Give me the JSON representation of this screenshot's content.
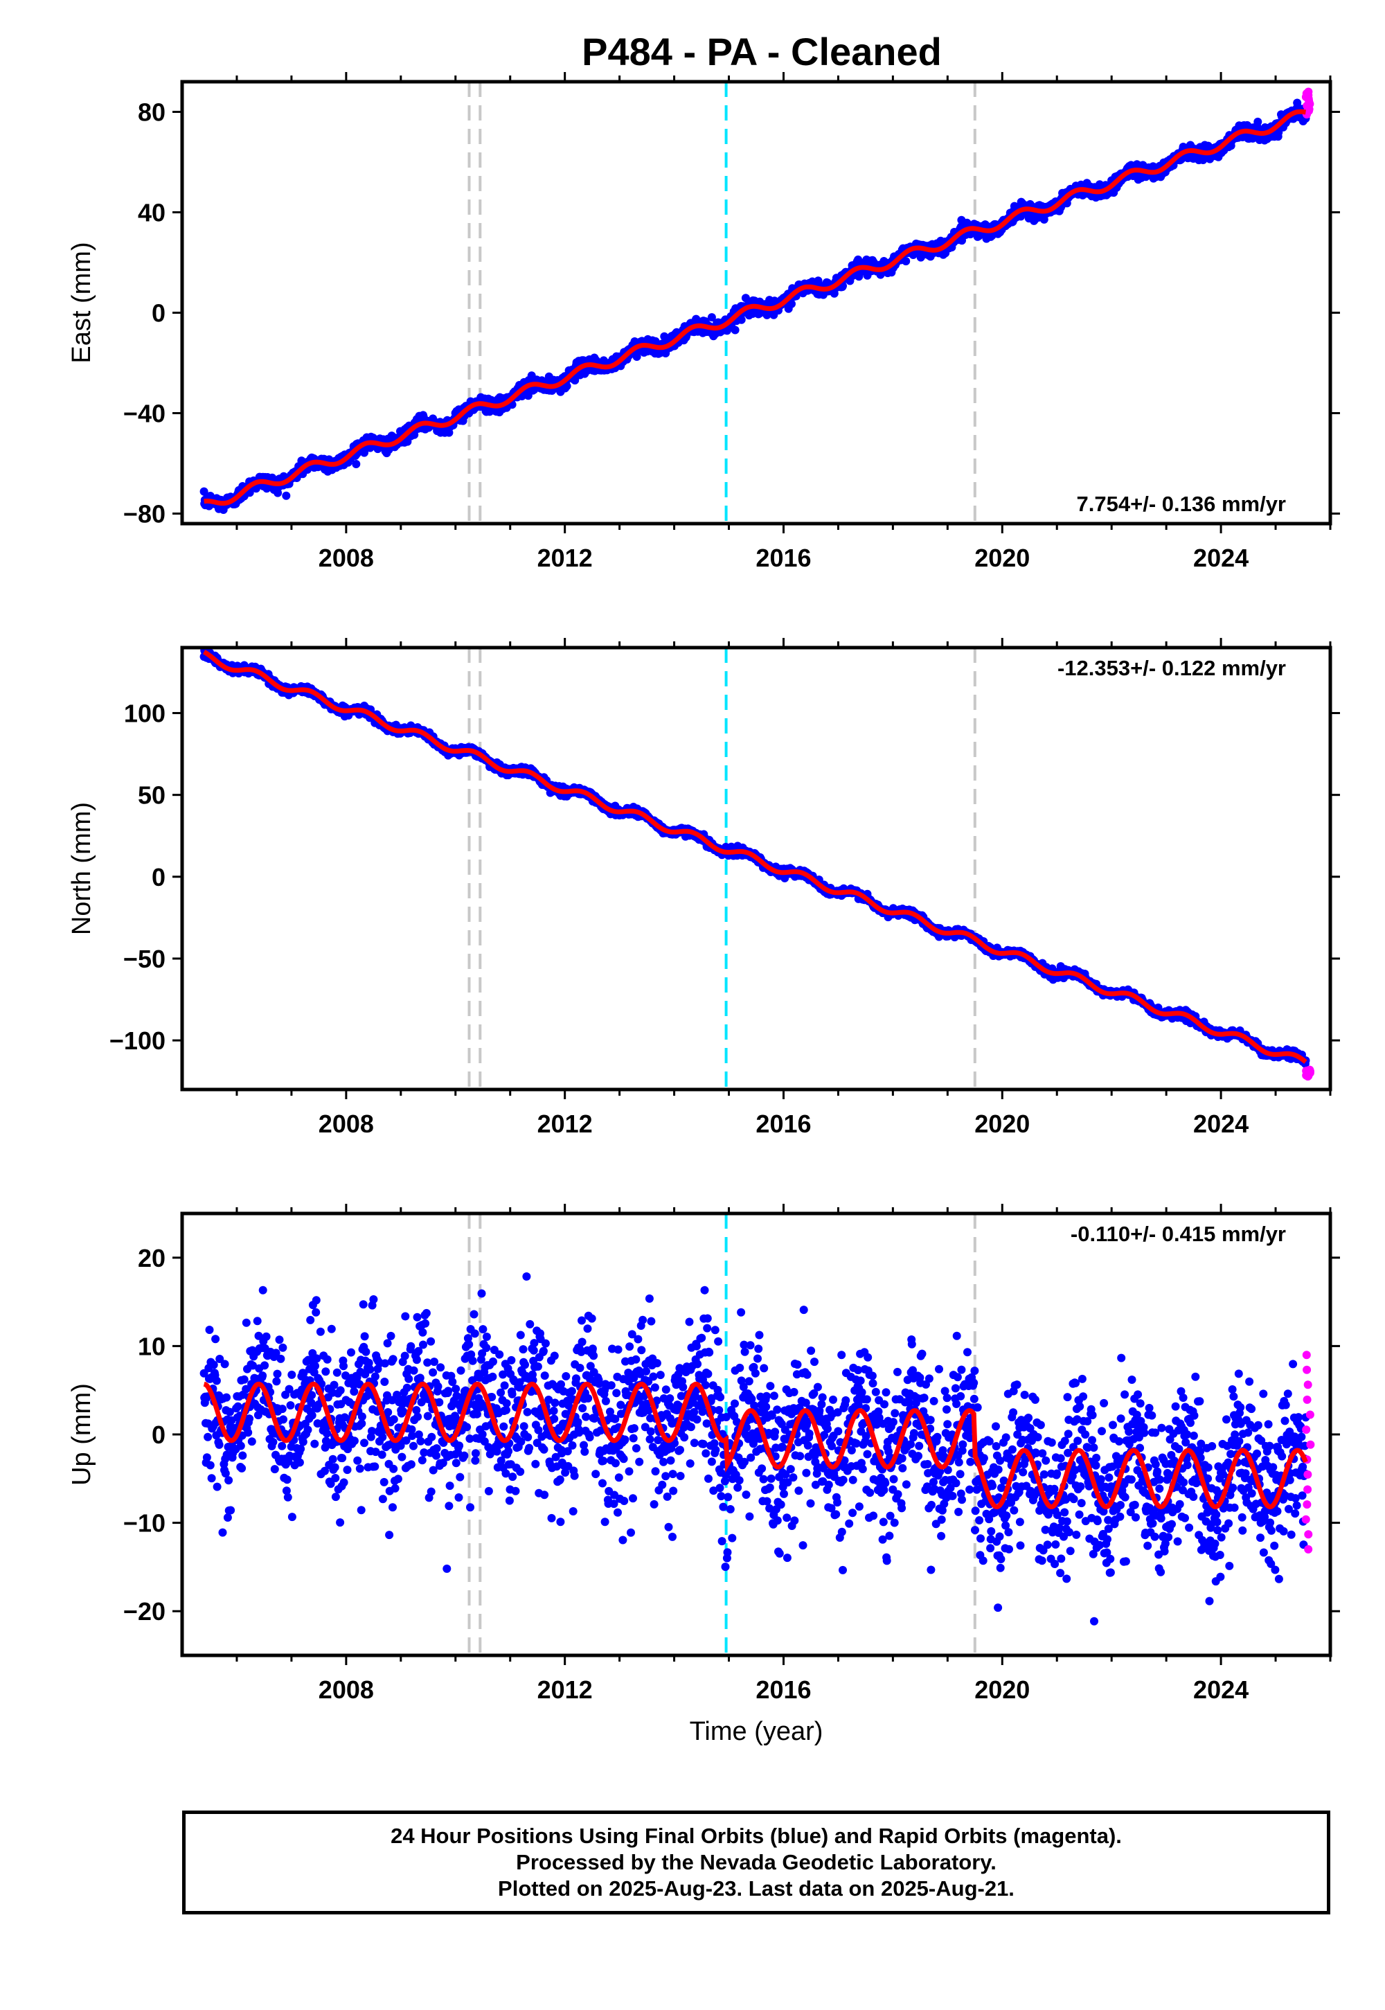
{
  "title": "P484  - PA - Cleaned",
  "x_axis_title": "Time (year)",
  "caption": [
    "24 Hour Positions Using Final Orbits (blue) and Rapid Orbits (magenta).",
    "Processed by the Nevada Geodetic Laboratory.",
    "Plotted on 2025-Aug-23. Last data on 2025-Aug-21."
  ],
  "colors": {
    "final_orbits": "#0000ff",
    "rapid_orbits": "#ff00ff",
    "model_fit": "#ff0000",
    "antenna_change": "#c8c8c8",
    "earthquake": "#00e5ff"
  },
  "chart_data": [
    {
      "type": "scatter",
      "panel": "east",
      "ylabel": "East (mm)",
      "rate_label": "7.754+/- 0.136 mm/yr",
      "xlim": [
        2005.0,
        2026.0
      ],
      "ylim": [
        -84,
        92
      ],
      "x_ticks": [
        2008,
        2012,
        2016,
        2020,
        2024
      ],
      "y_ticks": [
        -80,
        -40,
        0,
        40,
        80
      ],
      "grid": false,
      "antenna_change_years": [
        2010.25,
        2010.45,
        2019.5
      ],
      "earthquake_years": [
        2014.95
      ],
      "series": [
        {
          "name": "Final Orbits (blue)",
          "x_range": [
            2005.4,
            2025.55
          ],
          "trend": {
            "intercept_2005_4": -77,
            "rate_mm_per_yr": 7.754
          },
          "seasonal_amplitude": 2.0,
          "scatter_sd": 1.4
        },
        {
          "name": "Rapid Orbits (magenta)",
          "x_range": [
            2025.55,
            2025.64
          ],
          "y_range": [
            79,
            88
          ]
        }
      ]
    },
    {
      "type": "scatter",
      "panel": "north",
      "ylabel": "North (mm)",
      "rate_label": "-12.353+/- 0.122 mm/yr",
      "xlim": [
        2005.0,
        2026.0
      ],
      "ylim": [
        -130,
        140
      ],
      "x_ticks": [
        2008,
        2012,
        2016,
        2020,
        2024
      ],
      "y_ticks": [
        -100,
        -50,
        0,
        50,
        100
      ],
      "grid": false,
      "antenna_change_years": [
        2010.25,
        2010.45,
        2019.5
      ],
      "earthquake_years": [
        2014.95
      ],
      "series": [
        {
          "name": "Final Orbits (blue)",
          "x_range": [
            2005.4,
            2025.55
          ],
          "trend": {
            "intercept_2005_4": 135,
            "rate_mm_per_yr": -12.353
          },
          "seasonal_amplitude": 2.5,
          "scatter_sd": 1.2
        },
        {
          "name": "Rapid Orbits (magenta)",
          "x_range": [
            2025.55,
            2025.64
          ],
          "y_range": [
            -122,
            -118
          ]
        }
      ]
    },
    {
      "type": "scatter",
      "panel": "up",
      "ylabel": "Up (mm)",
      "rate_label": "-0.110+/- 0.415 mm/yr",
      "xlim": [
        2005.0,
        2026.0
      ],
      "ylim": [
        -25,
        25
      ],
      "x_ticks": [
        2008,
        2012,
        2016,
        2020,
        2024
      ],
      "y_ticks": [
        -20,
        -10,
        0,
        10,
        20
      ],
      "grid": false,
      "antenna_change_years": [
        2010.25,
        2010.45,
        2019.5
      ],
      "earthquake_years": [
        2014.95
      ],
      "series": [
        {
          "name": "Final Orbits (blue)",
          "x_range": [
            2005.4,
            2025.55
          ],
          "segments": [
            {
              "from": 2005.4,
              "to": 2014.95,
              "mean": 2.5
            },
            {
              "from": 2014.95,
              "to": 2019.5,
              "mean": -0.5
            },
            {
              "from": 2019.5,
              "to": 2025.55,
              "mean": -5.0
            }
          ],
          "seasonal_amplitude": 3.2,
          "scatter_sd": 4.3
        },
        {
          "name": "Rapid Orbits (magenta)",
          "x_range": [
            2025.55,
            2025.64
          ],
          "y_range": [
            -13,
            9
          ]
        }
      ]
    }
  ]
}
